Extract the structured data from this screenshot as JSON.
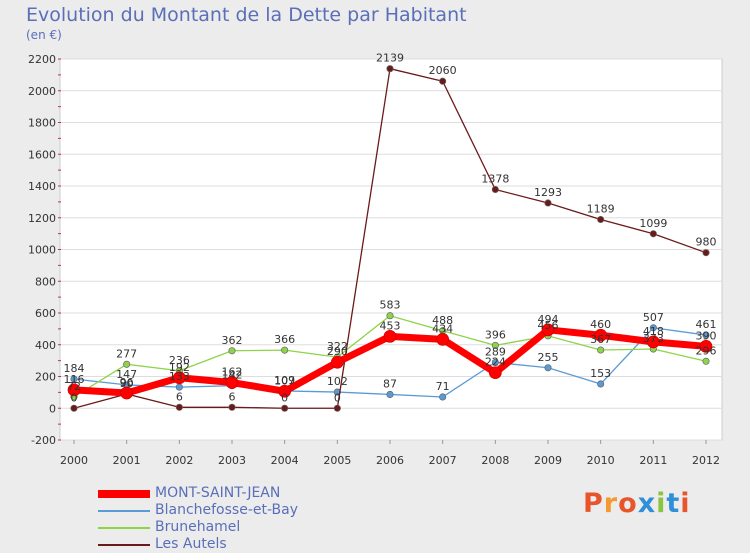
{
  "header": {
    "title": "Evolution du Montant de la Dette par Habitant",
    "subtitle": "(en €)"
  },
  "logo": {
    "text": "Proxiti",
    "letter_colors": [
      "#e8552a",
      "#f29a2e",
      "#e8552a",
      "#2f8fd8",
      "#8bc43f",
      "#2f8fd8",
      "#e8552a"
    ]
  },
  "chart_data": {
    "type": "line",
    "title": "Evolution du Montant de la Dette par Habitant",
    "subtitle": "(en €)",
    "x": [
      "2000",
      "2001",
      "2002",
      "2003",
      "2004",
      "2005",
      "2006",
      "2007",
      "2008",
      "2009",
      "2010",
      "2011",
      "2012"
    ],
    "ylim": [
      -200,
      2200
    ],
    "yticks": [
      -200,
      0,
      200,
      400,
      600,
      800,
      1000,
      1200,
      1400,
      1600,
      1800,
      2000,
      2200
    ],
    "grid": "horizontal",
    "legend_position": "bottom-left",
    "series": [
      {
        "name": "MONT-SAINT-JEAN",
        "color": "#ff0000",
        "thick": true,
        "values": [
          116,
          96,
          192,
          162,
          107,
          290,
          453,
          434,
          224,
          494,
          460,
          418,
          390
        ]
      },
      {
        "name": "Blanchefosse-et-Bay",
        "color": "#5b9bd5",
        "thick": false,
        "values": [
          184,
          147,
          133,
          142,
          109,
          102,
          87,
          71,
          289,
          255,
          153,
          507,
          461
        ]
      },
      {
        "name": "Brunehamel",
        "color": "#8ed44a",
        "thick": false,
        "values": [
          72,
          277,
          236,
          362,
          366,
          322,
          583,
          488,
          396,
          456,
          367,
          373,
          296
        ]
      },
      {
        "name": "Les Autels",
        "color": "#6b1a1a",
        "thick": false,
        "values": [
          0,
          90,
          6,
          6,
          0,
          0,
          2139,
          2060,
          1378,
          1293,
          1189,
          1099,
          980
        ]
      }
    ]
  }
}
